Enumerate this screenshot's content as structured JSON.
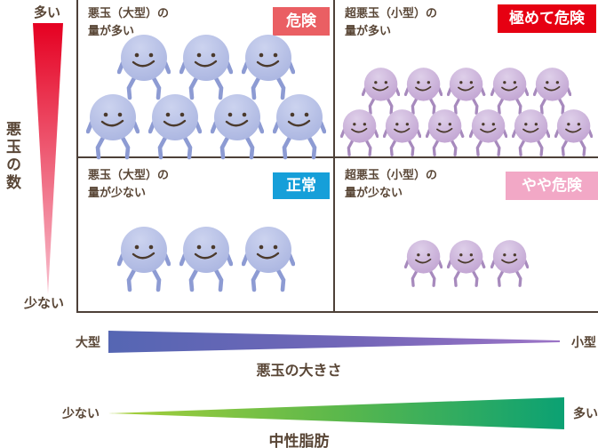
{
  "title": "LDL (bad cholesterol) size and count risk matrix",
  "colors": {
    "text": "#594636",
    "grid_line": "#4d4038",
    "badge_danger": "#ea5f63",
    "badge_extreme": "#e60012",
    "badge_normal": "#169fd9",
    "badge_mild": "#f2a8c6",
    "red_wedge_top": "#e50021",
    "red_wedge_bottom": "#f8bfce",
    "size_wedge_left": "#5566b3",
    "size_wedge_mid": "#7366b8",
    "size_wedge_right": "#9c74c6",
    "fat_wedge_left": "#a9d03a",
    "fat_wedge_mid": "#5cb84b",
    "fat_wedge_right": "#0ba173",
    "blue_body": "#a9b4e0",
    "blue_body_light": "#ccd3ef",
    "blue_limb": "#8d9bd3",
    "purple_body": "#c0a2d1",
    "purple_body_light": "#decfe9",
    "purple_limb": "#a78abd",
    "face": "#4b3a2c"
  },
  "y_axis": {
    "title": "悪玉の数",
    "top_label": "多い",
    "bottom_label": "少ない"
  },
  "quadrants": {
    "top_left": {
      "desc_line1": "悪玉（大型）の",
      "desc_line2": "量が多い",
      "badge": "危険",
      "character_type": "blue",
      "character_rows": [
        3,
        4
      ],
      "character_count": 7
    },
    "top_right": {
      "desc_line1": "超悪玉（小型）の",
      "desc_line2": "量が多い",
      "badge": "極めて危険",
      "character_type": "purple",
      "character_rows": [
        5,
        6
      ],
      "character_count": 11
    },
    "bottom_left": {
      "desc_line1": "悪玉（大型）の",
      "desc_line2": "量が少ない",
      "badge": "正常",
      "character_type": "blue",
      "character_rows": [
        3
      ],
      "character_count": 3
    },
    "bottom_right": {
      "desc_line1": "超悪玉（小型）の",
      "desc_line2": "量が少ない",
      "badge": "やや危険",
      "character_type": "purple",
      "character_rows": [
        3
      ],
      "character_count": 3
    }
  },
  "size_axis": {
    "title": "悪玉の大きさ",
    "left_label": "大型",
    "right_label": "小型"
  },
  "fat_axis": {
    "title": "中性脂肪",
    "left_label": "少ない",
    "right_label": "多い"
  }
}
